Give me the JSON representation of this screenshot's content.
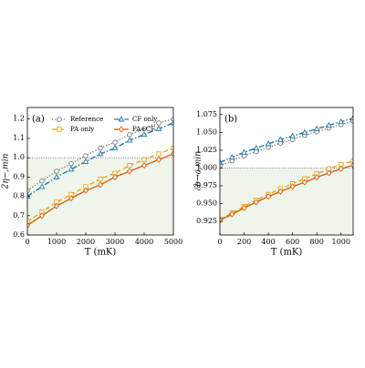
{
  "chart_data": [
    {
      "type": "line",
      "panel_label": "(a)",
      "xlabel": "T (mK)",
      "ylabel": "2η−,min",
      "x": [
        0,
        500,
        1000,
        1500,
        2000,
        2500,
        3000,
        3500,
        4000,
        4500,
        5000
      ],
      "series": [
        {
          "name": "Reference",
          "color": "#777777",
          "dash": "dotted",
          "marker": "circle",
          "values": [
            0.83,
            0.88,
            0.93,
            0.97,
            1.01,
            1.05,
            1.08,
            1.12,
            1.15,
            1.18,
            1.2
          ]
        },
        {
          "name": "CF only",
          "color": "#1f77b4",
          "dash": "dashdot",
          "marker": "triangle",
          "values": [
            0.8,
            0.85,
            0.9,
            0.94,
            0.98,
            1.02,
            1.05,
            1.09,
            1.12,
            1.15,
            1.18
          ]
        },
        {
          "name": "PA only",
          "color": "#e8a317",
          "dash": "dashed",
          "marker": "square",
          "values": [
            0.67,
            0.72,
            0.77,
            0.81,
            0.85,
            0.89,
            0.92,
            0.96,
            0.99,
            1.02,
            1.05
          ]
        },
        {
          "name": "PA+CF",
          "color": "#d95f0e",
          "dash": "solid",
          "marker": "diamond",
          "values": [
            0.65,
            0.7,
            0.75,
            0.79,
            0.83,
            0.86,
            0.9,
            0.93,
            0.96,
            0.99,
            1.02
          ]
        }
      ],
      "threshold": 1.0,
      "xlim": [
        0,
        5000
      ],
      "xticks": [
        0,
        1000,
        2000,
        3000,
        4000,
        5000
      ],
      "ylim": [
        0.6,
        1.26
      ],
      "yticks": [
        0.6,
        0.7,
        0.8,
        0.9,
        {
          "value": 1.0,
          "label": "1.0"
        },
        1.1,
        1.2
      ],
      "legend": "upper left"
    },
    {
      "type": "line",
      "panel_label": "(b)",
      "xlabel": "T (mK)",
      "ylabel": "ℰb→a,min",
      "x": [
        0,
        100,
        200,
        300,
        400,
        500,
        600,
        700,
        800,
        900,
        1000,
        1100
      ],
      "series": [
        {
          "color": "#777777",
          "dash": "dotted",
          "marker": "circle",
          "values": [
            1.003,
            1.01,
            1.017,
            1.023,
            1.029,
            1.035,
            1.04,
            1.046,
            1.051,
            1.056,
            1.061,
            1.066
          ]
        },
        {
          "color": "#1f77b4",
          "dash": "dashdot",
          "marker": "triangle",
          "values": [
            1.008,
            1.015,
            1.022,
            1.028,
            1.034,
            1.04,
            1.045,
            1.05,
            1.055,
            1.06,
            1.065,
            1.07
          ]
        },
        {
          "color": "#e8a317",
          "dash": "dashed",
          "marker": "square",
          "values": [
            0.928,
            0.937,
            0.946,
            0.955,
            0.963,
            0.971,
            0.978,
            0.985,
            0.992,
            0.999,
            1.005,
            1.01
          ]
        },
        {
          "color": "#d95f0e",
          "dash": "solid",
          "marker": "diamond",
          "values": [
            0.927,
            0.935,
            0.944,
            0.952,
            0.96,
            0.967,
            0.974,
            0.98,
            0.987,
            0.993,
            0.999,
            1.004
          ]
        }
      ],
      "threshold": 1.0,
      "xlim": [
        0,
        1100
      ],
      "xticks": [
        0,
        200,
        400,
        600,
        800,
        1000
      ],
      "ylim": [
        0.906,
        1.085
      ],
      "yticks": [
        0.925,
        {
          "value": 0.95,
          "label": "0.950"
        },
        0.975,
        {
          "value": 1.0,
          "label": "1.000"
        },
        1.025,
        {
          "value": 1.05,
          "label": "1.050"
        },
        1.075
      ]
    }
  ]
}
